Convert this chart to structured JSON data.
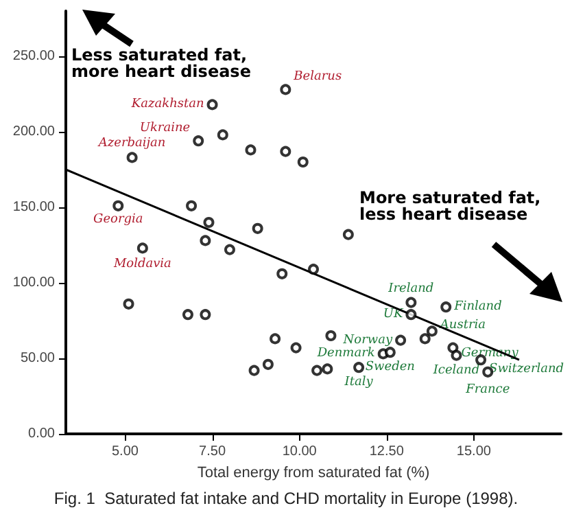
{
  "chart_data": {
    "type": "scatter",
    "title": "Fig. 1  Saturated fat intake and CHD mortality in Europe (1998).",
    "xlabel": "Total energy from saturated fat (%)",
    "xlim": [
      3.3,
      17.5
    ],
    "xticks": [
      {
        "value": 5,
        "label": "5.00"
      },
      {
        "value": 7.5,
        "label": "7.50"
      },
      {
        "value": 10,
        "label": "10.00"
      },
      {
        "value": 12.5,
        "label": "12.50"
      },
      {
        "value": 15,
        "label": "15.00"
      }
    ],
    "ylim": [
      0,
      280
    ],
    "yticks": [
      {
        "value": 0,
        "label": "0.00"
      },
      {
        "value": 50,
        "label": "50.00"
      },
      {
        "value": 100,
        "label": "100.00"
      },
      {
        "value": 150,
        "label": "150.00"
      },
      {
        "value": 200,
        "label": "200.00"
      },
      {
        "value": 250,
        "label": "250.00"
      }
    ],
    "grid": false,
    "series": [
      {
        "color": "#000000",
        "marker": "circle",
        "x": [
          5.2,
          7.5,
          7.1,
          7.8,
          8.6,
          9.6,
          9.6,
          10.1,
          4.8,
          6.9,
          7.4,
          7.3,
          8.0,
          5.5,
          8.8,
          9.5,
          11.4,
          10.4,
          5.1,
          6.8,
          7.3,
          9.3,
          9.9,
          10.9,
          8.7,
          9.1,
          10.5,
          10.8,
          11.7,
          12.4,
          12.6,
          12.9,
          13.2,
          13.2,
          14.2,
          13.8,
          13.6,
          14.4,
          14.5,
          15.2,
          15.4
        ],
        "values": [
          183,
          218,
          194,
          198,
          188,
          228,
          187,
          180,
          151,
          151,
          140,
          128,
          122,
          123,
          136,
          106,
          132,
          109,
          86,
          79,
          79,
          63,
          57,
          65,
          42,
          46,
          42,
          43,
          44,
          53,
          54,
          62,
          87,
          79,
          84,
          68,
          63,
          57,
          52,
          49,
          41
        ]
      },
      {
        "type": "line",
        "color": "#000000",
        "marker": "none",
        "x": [
          3.3,
          16.3
        ],
        "values": [
          175,
          49
        ]
      }
    ],
    "annotations": [
      "Less saturated fat,\nmore heart disease",
      "More saturated fat,\nless heart disease",
      {
        "text": "Kazakhstan",
        "x": 7.5,
        "y": 218
      },
      {
        "text": "Belarus",
        "x": 9.6,
        "y": 228
      },
      {
        "text": "Ukraine",
        "x": 7.1,
        "y": 194
      },
      {
        "text": "Azerbaijan",
        "x": 5.2,
        "y": 183
      },
      {
        "text": "Georgia",
        "x": 4.8,
        "y": 151
      },
      {
        "text": "Moldavia",
        "x": 5.5,
        "y": 123
      },
      {
        "text": "Ireland",
        "x": 13.2,
        "y": 87
      },
      {
        "text": "UK",
        "x": 13.2,
        "y": 79
      },
      {
        "text": "Finland",
        "x": 14.2,
        "y": 84
      },
      {
        "text": "Norway",
        "x": 12.9,
        "y": 62
      },
      {
        "text": "Austria",
        "x": 13.8,
        "y": 68
      },
      {
        "text": "Germany",
        "x": 14.4,
        "y": 57
      },
      {
        "text": "Sweden",
        "x": 12.6,
        "y": 54
      },
      {
        "text": "Iceland",
        "x": 14.5,
        "y": 52
      },
      {
        "text": "Denmark",
        "x": 12.4,
        "y": 53
      },
      {
        "text": "Italy",
        "x": 11.7,
        "y": 44
      },
      {
        "text": "Switzerland",
        "x": 15.2,
        "y": 49
      },
      {
        "text": "France",
        "x": 15.4,
        "y": 41
      }
    ]
  }
}
